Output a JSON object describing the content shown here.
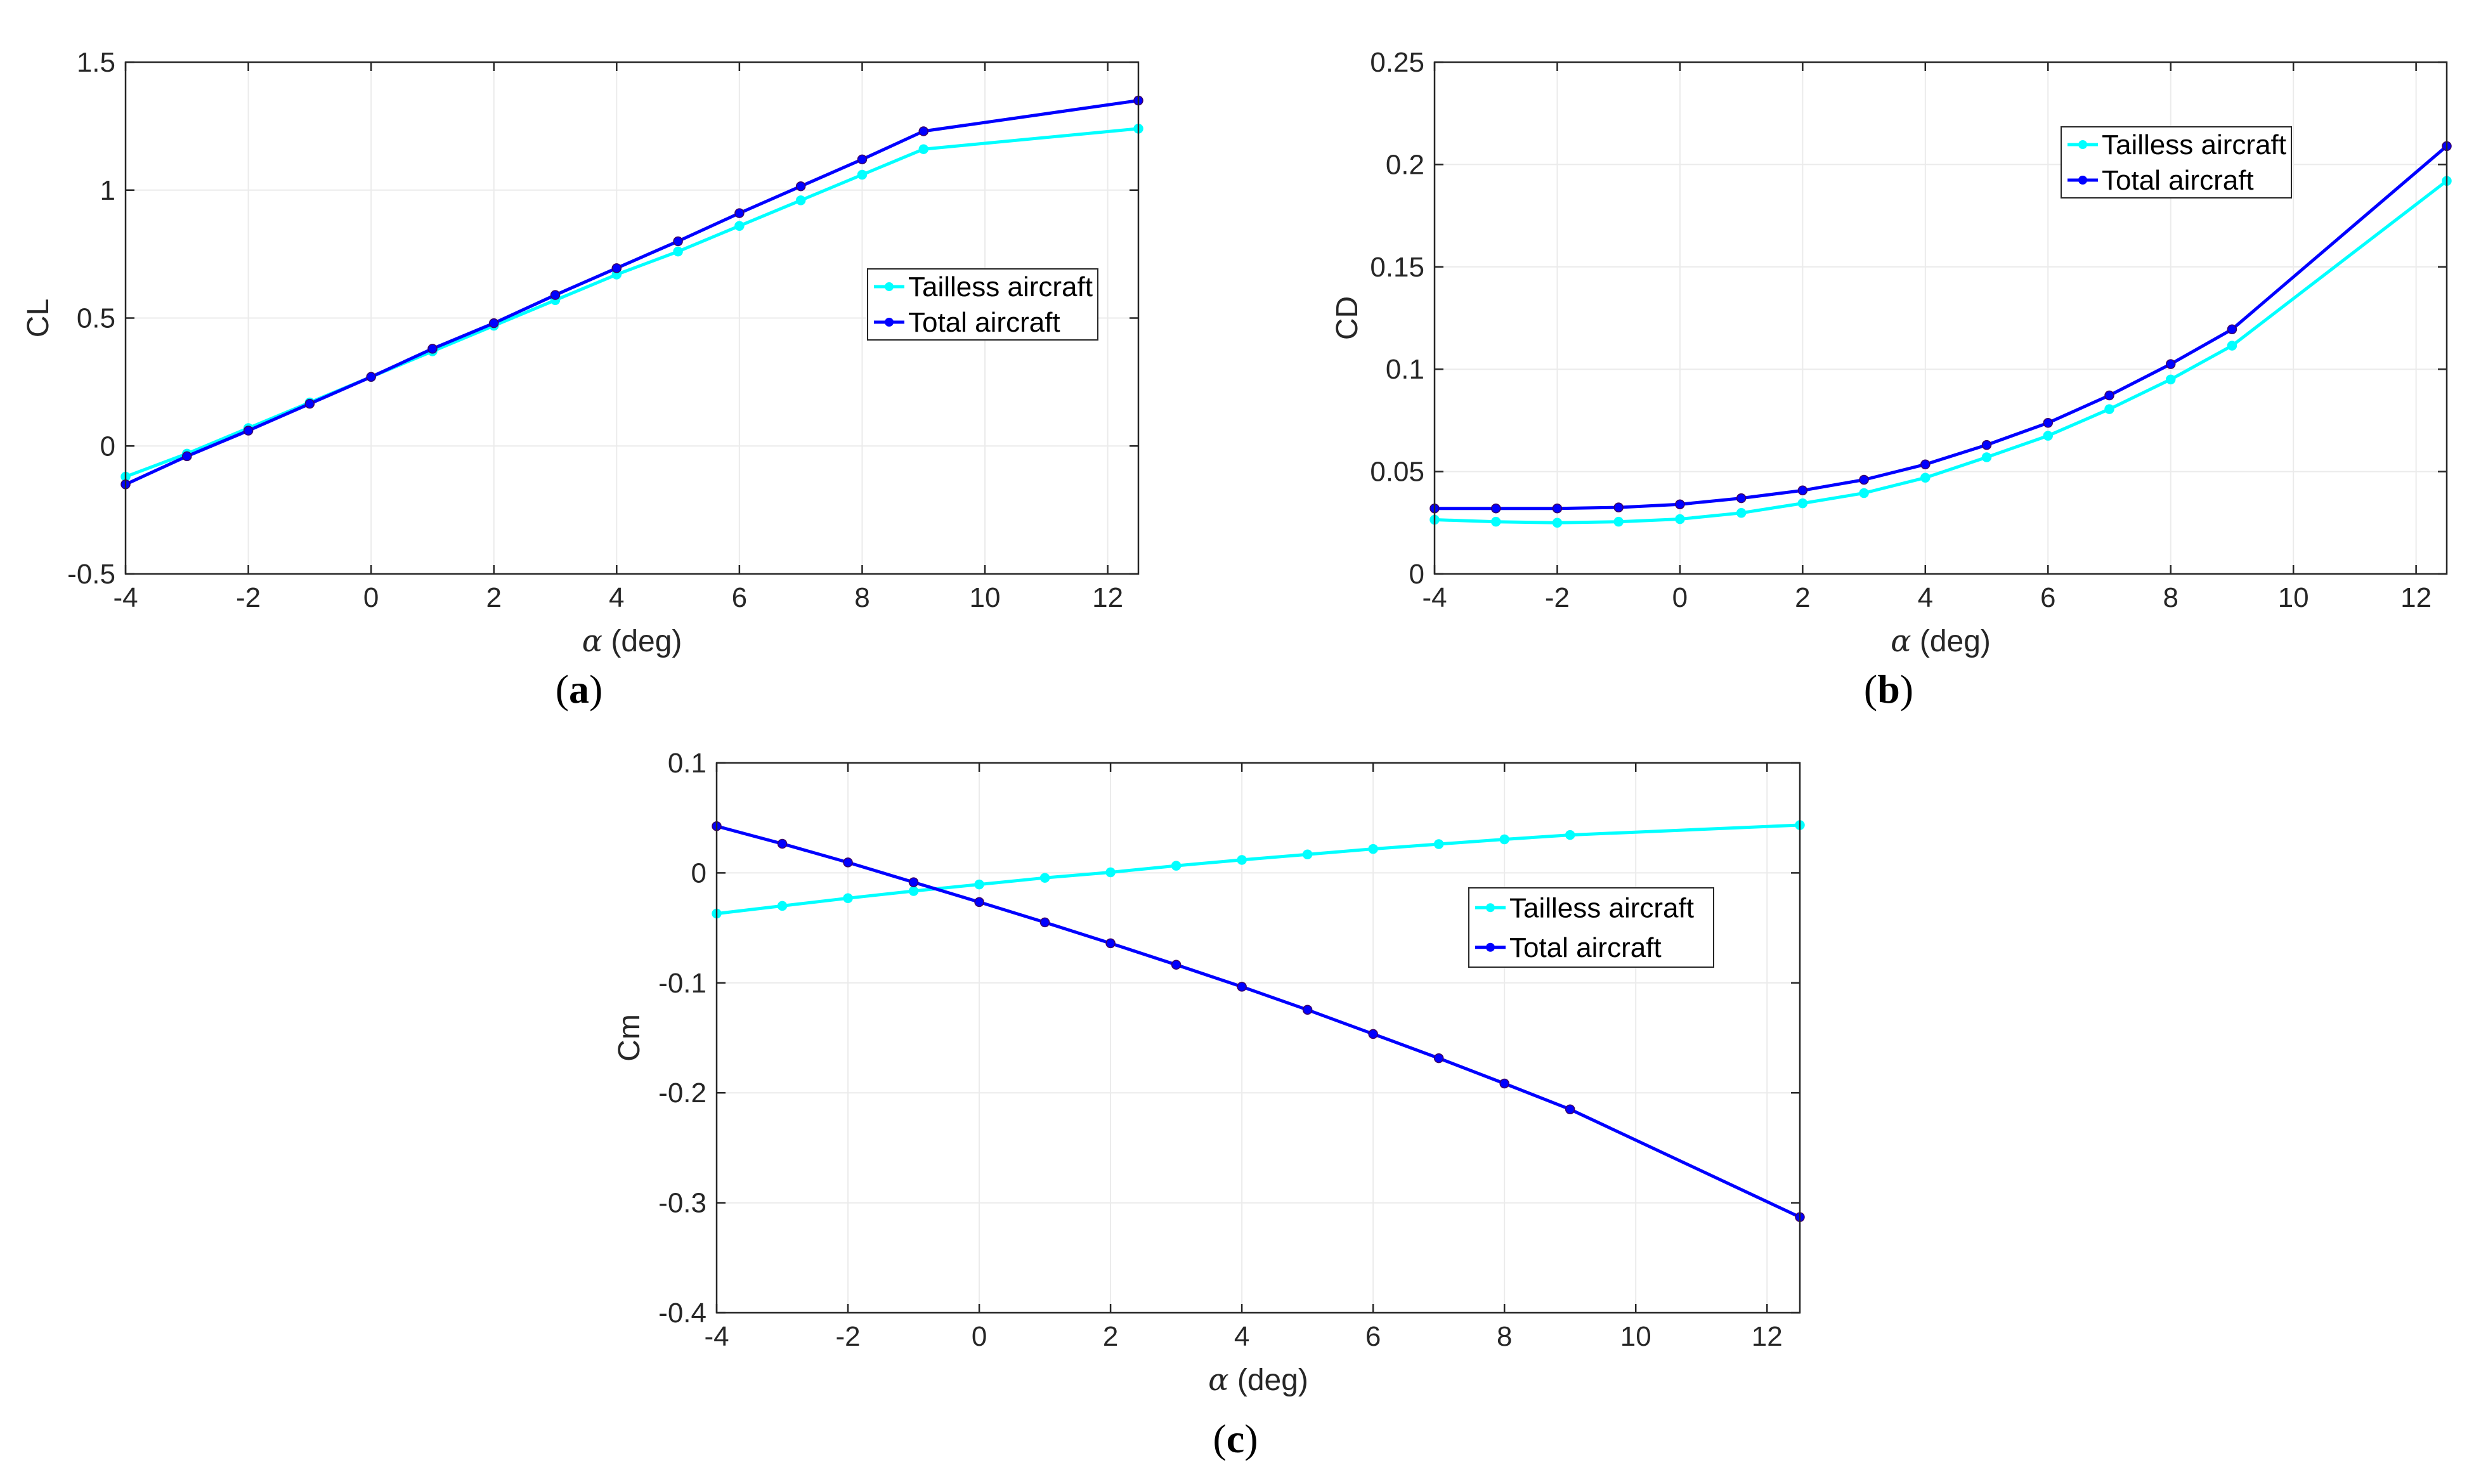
{
  "figure": {
    "panels": [
      "a",
      "b",
      "c"
    ]
  },
  "chart_data": [
    {
      "id": "a",
      "type": "line",
      "caption": "a",
      "title": "",
      "xlabel_symbol": "α",
      "xlabel": " (deg)",
      "ylabel": "CL",
      "xlim": [
        -4,
        12.5
      ],
      "ylim": [
        -0.5,
        1.5
      ],
      "xticks": [
        -4,
        -2,
        0,
        2,
        4,
        6,
        8,
        10,
        12
      ],
      "xtick_labels": [
        "-4",
        "-2",
        "0",
        "2",
        "4",
        "6",
        "8",
        "10",
        "12"
      ],
      "yticks": [
        -0.5,
        0,
        0.5,
        1,
        1.5
      ],
      "ytick_labels": [
        "-0.5",
        "0",
        "0.5",
        "1",
        "1.5"
      ],
      "grid": true,
      "legend_position": "center-right",
      "series": [
        {
          "name": "Tailless aircraft",
          "color": "#00ffff",
          "x": [
            -4,
            -3,
            -2,
            -1,
            0,
            1,
            2,
            3,
            4,
            5,
            6,
            7,
            8,
            9,
            12.5
          ],
          "y": [
            -0.12,
            -0.03,
            0.07,
            0.17,
            0.27,
            0.37,
            0.47,
            0.57,
            0.67,
            0.76,
            0.86,
            0.96,
            1.06,
            1.16,
            1.24
          ]
        },
        {
          "name": "Total aircraft",
          "color": "#0000ff",
          "x": [
            -4,
            -3,
            -2,
            -1,
            0,
            1,
            2,
            3,
            4,
            5,
            6,
            7,
            8,
            9,
            12.5
          ],
          "y": [
            -0.15,
            -0.04,
            0.06,
            0.165,
            0.27,
            0.38,
            0.48,
            0.59,
            0.695,
            0.8,
            0.91,
            1.015,
            1.12,
            1.23,
            1.35
          ]
        }
      ]
    },
    {
      "id": "b",
      "type": "line",
      "caption": "b",
      "title": "",
      "xlabel_symbol": "α",
      "xlabel": " (deg)",
      "ylabel": "CD",
      "xlim": [
        -4,
        12.5
      ],
      "ylim": [
        0,
        0.25
      ],
      "xticks": [
        -4,
        -2,
        0,
        2,
        4,
        6,
        8,
        10,
        12
      ],
      "xtick_labels": [
        "-4",
        "-2",
        "0",
        "2",
        "4",
        "6",
        "8",
        "10",
        "12"
      ],
      "yticks": [
        0,
        0.05,
        0.1,
        0.15,
        0.2,
        0.25
      ],
      "ytick_labels": [
        "0",
        "0.05",
        "0.1",
        "0.15",
        "0.2",
        "0.25"
      ],
      "grid": true,
      "legend_position": "top-right",
      "series": [
        {
          "name": "Tailless aircraft",
          "color": "#00ffff",
          "x": [
            -4,
            -3,
            -2,
            -1,
            0,
            1,
            2,
            3,
            4,
            5,
            6,
            7,
            8,
            9,
            12.5
          ],
          "y": [
            0.0265,
            0.0255,
            0.025,
            0.0255,
            0.0268,
            0.0298,
            0.0345,
            0.0395,
            0.047,
            0.057,
            0.0675,
            0.0805,
            0.095,
            0.1115,
            0.192
          ]
        },
        {
          "name": "Total aircraft",
          "color": "#0000ff",
          "x": [
            -4,
            -3,
            -2,
            -1,
            0,
            1,
            2,
            3,
            4,
            5,
            6,
            7,
            8,
            9,
            12.5
          ],
          "y": [
            0.032,
            0.032,
            0.032,
            0.0325,
            0.034,
            0.037,
            0.0408,
            0.046,
            0.0535,
            0.063,
            0.0738,
            0.0872,
            0.1025,
            0.1195,
            0.209
          ]
        }
      ]
    },
    {
      "id": "c",
      "type": "line",
      "caption": "c",
      "title": "",
      "xlabel_symbol": "α",
      "xlabel": " (deg)",
      "ylabel": "Cm",
      "xlim": [
        -4,
        12.5
      ],
      "ylim": [
        -0.4,
        0.1
      ],
      "xticks": [
        -4,
        -2,
        0,
        2,
        4,
        6,
        8,
        10,
        12
      ],
      "xtick_labels": [
        "-4",
        "-2",
        "0",
        "2",
        "4",
        "6",
        "8",
        "10",
        "12"
      ],
      "yticks": [
        -0.4,
        -0.3,
        -0.2,
        -0.1,
        0,
        0.1
      ],
      "ytick_labels": [
        "-0.4",
        "-0.3",
        "-0.2",
        "-0.1",
        "0",
        "0.1"
      ],
      "grid": true,
      "legend_position": "center-right",
      "series": [
        {
          "name": "Tailless aircraft",
          "color": "#00ffff",
          "x": [
            -4,
            -3,
            -2,
            -1,
            0,
            1,
            2,
            3,
            4,
            5,
            6,
            7,
            8,
            9,
            12.5
          ],
          "y": [
            -0.037,
            -0.03,
            -0.023,
            -0.0165,
            -0.0105,
            -0.0045,
            0.0005,
            0.0065,
            0.0118,
            0.0168,
            0.0218,
            0.0262,
            0.0305,
            0.0345,
            0.0435
          ]
        },
        {
          "name": "Total aircraft",
          "color": "#0000ff",
          "x": [
            -4,
            -3,
            -2,
            -1,
            0,
            1,
            2,
            3,
            4,
            5,
            6,
            7,
            8,
            9,
            12.5
          ],
          "y": [
            0.0425,
            0.0265,
            0.0095,
            -0.0085,
            -0.0265,
            -0.045,
            -0.064,
            -0.0835,
            -0.1035,
            -0.1245,
            -0.1465,
            -0.1685,
            -0.1915,
            -0.215,
            -0.313
          ]
        }
      ]
    }
  ]
}
